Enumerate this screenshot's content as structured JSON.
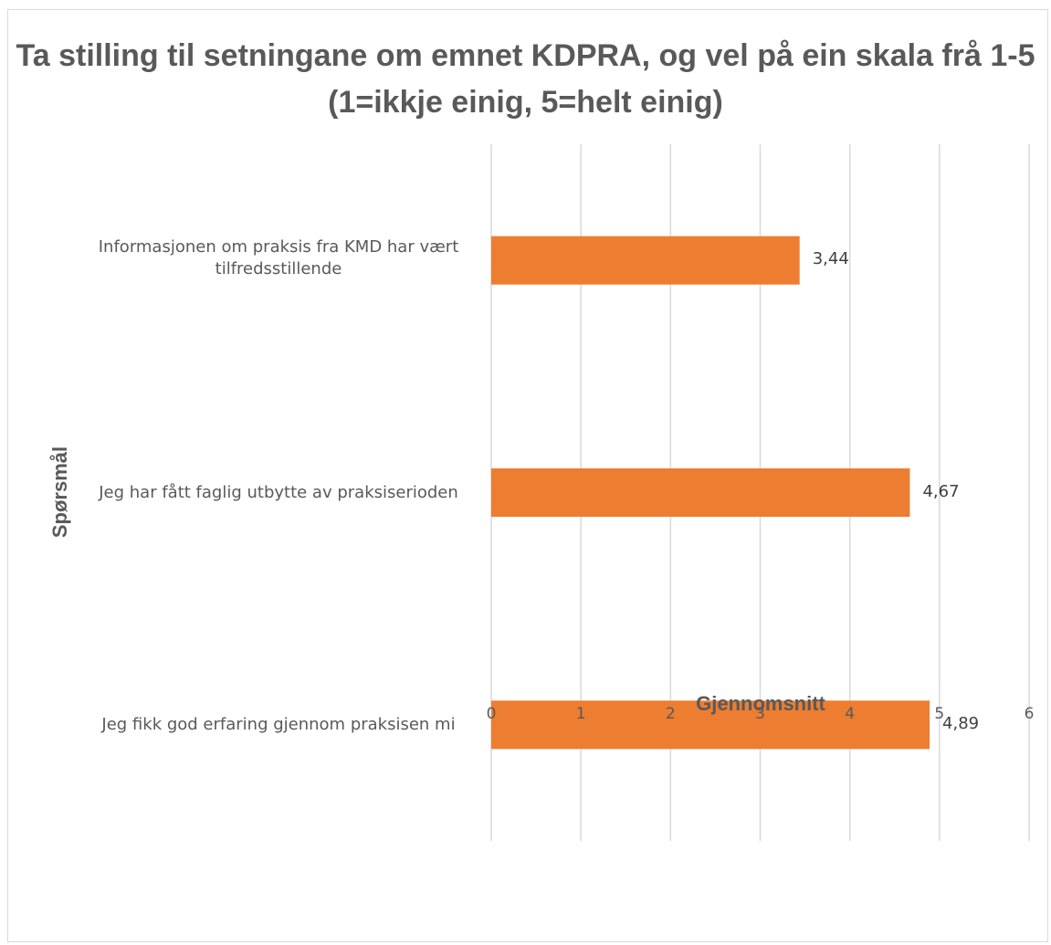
{
  "chart_data": {
    "type": "bar",
    "orientation": "horizontal",
    "title": "Ta stilling til setningane om emnet KDPRA, og vel på ein skala frå 1-5 (1=ikkje einig, 5=helt einig)",
    "xlabel": "Gjennomsnitt",
    "ylabel": "Spørsmål",
    "categories": [
      "Informasjonen om praksis fra KMD har vært tilfredsstillende",
      "Jeg har fått faglig utbytte av praksiserioden",
      "Jeg fikk god erfaring gjennom praksisen mi"
    ],
    "values": [
      3.44,
      4.67,
      4.89
    ],
    "data_labels": [
      "3,44",
      "4,67",
      "4,89"
    ],
    "xlim": [
      0,
      6
    ],
    "xticks": [
      "0",
      "1",
      "2",
      "3",
      "4",
      "5",
      "6"
    ],
    "grid": "vertical",
    "bar_color": "#ED7D31"
  }
}
